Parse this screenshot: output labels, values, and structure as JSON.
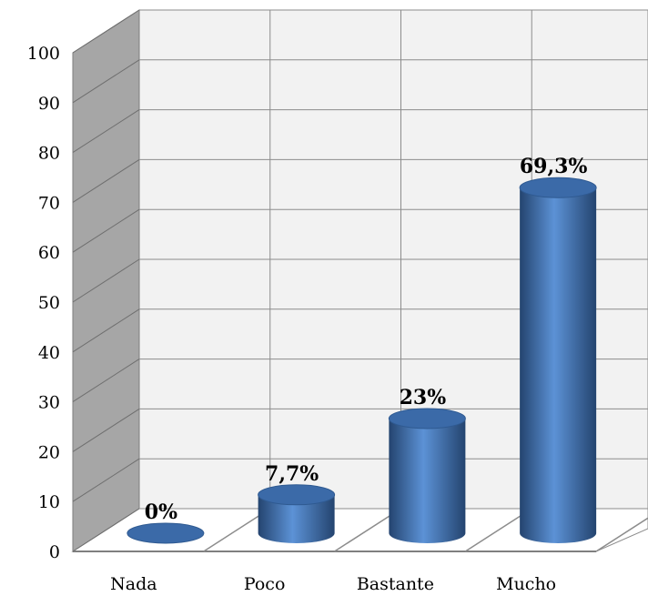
{
  "chart_data": {
    "type": "bar",
    "style": "3d-cylinder",
    "categories": [
      "Nada",
      "Poco",
      "Bastante",
      "Mucho"
    ],
    "values": [
      0,
      7.7,
      23,
      69.3
    ],
    "data_labels": [
      "0%",
      "7,7%",
      "23%",
      "69,3%"
    ],
    "ylim": [
      0,
      100
    ],
    "yticks": [
      "0",
      "10",
      "20",
      "30",
      "40",
      "50",
      "60",
      "70",
      "80",
      "90",
      "100"
    ],
    "grid": true,
    "legend": "none",
    "colors": {
      "bar": "#4a7ebf",
      "bar_dark": "#24446f",
      "bar_top": "#3b6aa8",
      "grid": "#8c8c8c",
      "side_wall": "#a6a6a6",
      "back_wall": "#f2f2f2"
    }
  }
}
